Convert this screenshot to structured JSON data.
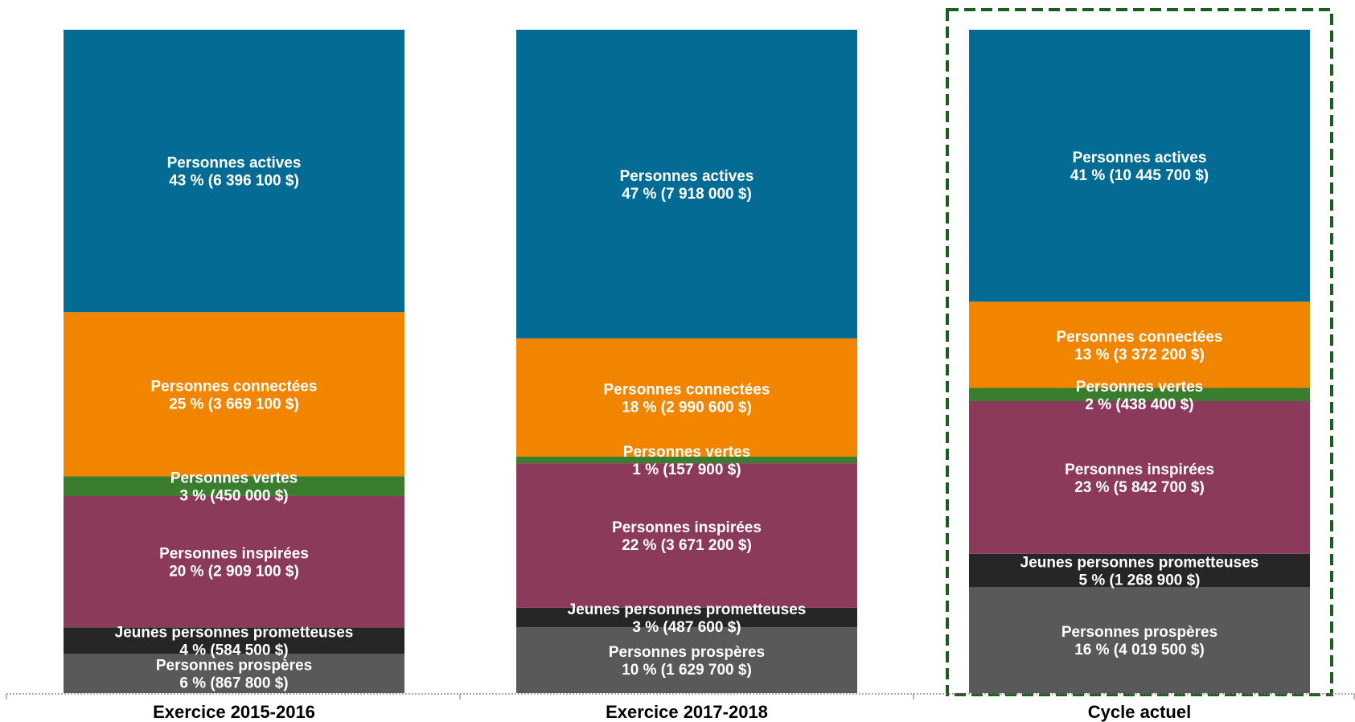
{
  "chart_data": {
    "type": "bar",
    "stacked": true,
    "normalized": true,
    "categories": [
      "Exercice 2015-2016",
      "Exercice 2017-2018",
      "Cycle actuel"
    ],
    "highlighted_category": "Cycle actuel",
    "series": [
      {
        "name": "Personnes prospères",
        "color": "#595959",
        "values": [
          6,
          10,
          16
        ],
        "labels": [
          "6 % (867 800 $)",
          "10 % (1 629 700 $)",
          "16 % (4 019 500 $)"
        ]
      },
      {
        "name": "Jeunes personnes prometteuses",
        "color": "#262626",
        "values": [
          4,
          3,
          5
        ],
        "labels": [
          "4 % (584 500 $)",
          "3 % (487 600 $)",
          "5 % (1 268 900 $)"
        ]
      },
      {
        "name": "Personnes inspirées",
        "color": "#8b3a5c",
        "values": [
          20,
          22,
          23
        ],
        "labels": [
          "20 % (2 909 100 $)",
          "22 % (3 671 200 $)",
          "23 % (5 842 700 $)"
        ]
      },
      {
        "name": "Personnes vertes",
        "color": "#3b7d2f",
        "values": [
          3,
          1,
          2
        ],
        "labels": [
          "3 % (450 000 $)",
          "1 % (157 900 $)",
          "2 % (438 400 $)"
        ]
      },
      {
        "name": "Personnes connectées",
        "color": "#f28500",
        "values": [
          25,
          18,
          13
        ],
        "labels": [
          "25 % (3 669 100 $)",
          "18 % (2 990 600 $)",
          "13 % (3 372 200 $)"
        ]
      },
      {
        "name": "Personnes actives",
        "color": "#046c94",
        "values": [
          43,
          47,
          41
        ],
        "labels": [
          "43 % (6 396 100 $)",
          "47 % (7 918 000 $)",
          "41 % (10 445 700 $)"
        ]
      }
    ],
    "colors": {
      "highlight_border": "#1d5e1d",
      "axis": "#777777",
      "label_text": "#ffffff"
    }
  }
}
